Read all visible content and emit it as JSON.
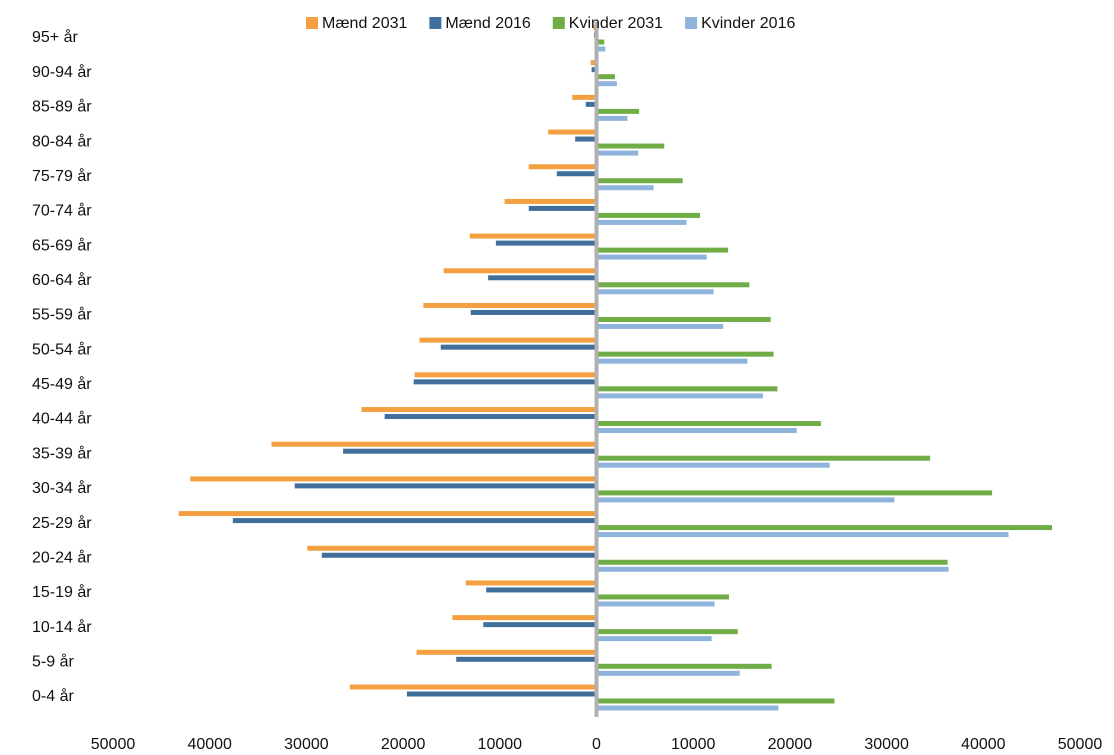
{
  "chart_data": {
    "type": "bar",
    "orientation": "horizontal",
    "categories": [
      "0-4 år",
      "5-9 år",
      "10-14 år",
      "15-19 år",
      "20-24 år",
      "25-29 år",
      "30-34 år",
      "35-39 år",
      "40-44 år",
      "45-49 år",
      "50-54 år",
      "55-59 år",
      "60-64 år",
      "65-69 år",
      "70-74 år",
      "75-79 år",
      "80-84 år",
      "85-89 år",
      "90-94 år",
      "95+ år"
    ],
    "series": [
      {
        "name": "Mænd 2031",
        "color": "#f4a040",
        "values": [
          -25300,
          -18400,
          -14700,
          -13300,
          -29700,
          -43000,
          -41800,
          -33400,
          -24100,
          -18600,
          -18100,
          -17700,
          -15600,
          -12900,
          -9300,
          -6800,
          -4800,
          -2300,
          -400,
          -100
        ]
      },
      {
        "name": "Mænd 2016",
        "color": "#3f6f9a",
        "values": [
          -19400,
          -14300,
          -11500,
          -11200,
          -28200,
          -37400,
          -31000,
          -26000,
          -21700,
          -18700,
          -15900,
          -12800,
          -11000,
          -10200,
          -6800,
          -3900,
          -2000,
          -900,
          -300,
          -50
        ]
      },
      {
        "name": "Kvinder 2031",
        "color": "#70ad47",
        "values": [
          24400,
          17900,
          14400,
          13500,
          36100,
          46900,
          40700,
          34300,
          23000,
          18500,
          18100,
          17800,
          15600,
          13400,
          10500,
          8700,
          6800,
          4200,
          1700,
          600
        ]
      },
      {
        "name": "Kvinder 2016",
        "color": "#8fb4dc",
        "values": [
          18600,
          14600,
          11700,
          12000,
          36200,
          42400,
          30600,
          23900,
          20500,
          17000,
          15400,
          12900,
          11900,
          11200,
          9100,
          5700,
          4100,
          3000,
          1900,
          700
        ]
      }
    ],
    "xlim": [
      -50000,
      50000
    ],
    "xticks": [
      {
        "value": -50000,
        "label": "50000"
      },
      {
        "value": -40000,
        "label": "40000"
      },
      {
        "value": -30000,
        "label": "30000"
      },
      {
        "value": -20000,
        "label": "20000"
      },
      {
        "value": -10000,
        "label": "10000"
      },
      0,
      10000,
      20000,
      30000,
      40000,
      50000
    ],
    "legend": "top"
  }
}
